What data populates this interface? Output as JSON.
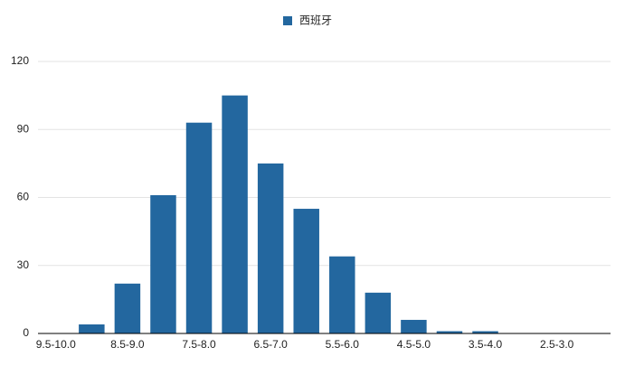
{
  "chart_data": {
    "type": "bar",
    "legend": "西班牙",
    "categories": [
      "9.5-10.0",
      null,
      "8.5-9.0",
      null,
      "7.5-8.0",
      null,
      "6.5-7.0",
      null,
      "5.5-6.0",
      null,
      "4.5-5.0",
      null,
      "3.5-4.0",
      null,
      "2.5-3.0",
      null
    ],
    "values": [
      0,
      4,
      22,
      61,
      93,
      105,
      75,
      55,
      34,
      18,
      6,
      1,
      1,
      0,
      0,
      0
    ],
    "color": "#23679f",
    "ylim": [
      0,
      120
    ],
    "yticks": [
      0,
      30,
      60,
      90,
      120
    ],
    "grid": true
  }
}
